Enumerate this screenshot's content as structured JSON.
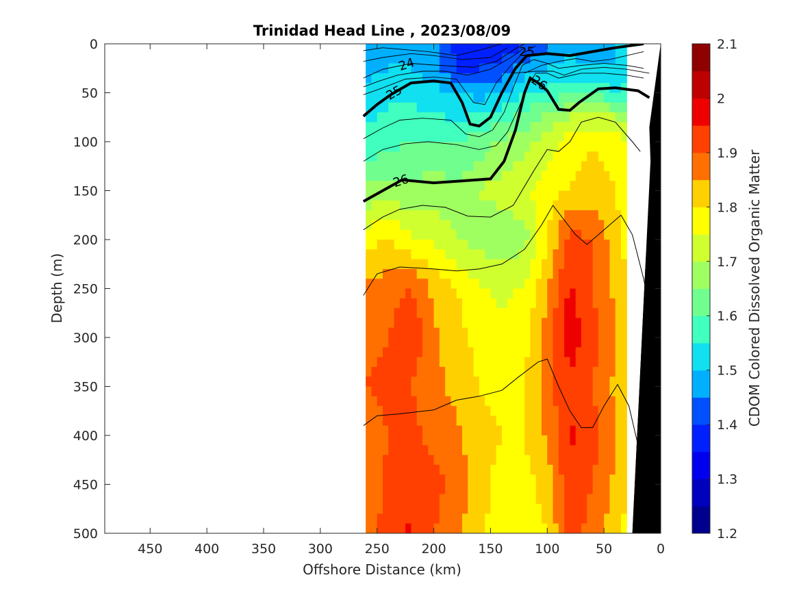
{
  "chart_data": {
    "type": "heatmap",
    "subtype": "filled-contour section with overlaid density contours",
    "title": "Trinidad Head Line , 2023/08/09",
    "xlabel": "Offshore Distance (km)",
    "ylabel": "Depth (m)",
    "colorbar_label": "CDOM Colored Dissolved Organic Matter",
    "xlim": [
      490,
      0
    ],
    "x_reversed": true,
    "ylim": [
      0,
      500
    ],
    "y_reversed": true,
    "x_ticks": [
      450,
      400,
      350,
      300,
      250,
      200,
      150,
      100,
      50,
      0
    ],
    "y_ticks": [
      0,
      50,
      100,
      150,
      200,
      250,
      300,
      350,
      400,
      450,
      500
    ],
    "clim": [
      1.2,
      2.1
    ],
    "colorbar_ticks": [
      2.1,
      2,
      1.9,
      1.8,
      1.7,
      1.6,
      1.5,
      1.4,
      1.3,
      1.2
    ],
    "colorbar_levels": 18,
    "colormap": [
      "#00008f",
      "#0000bf",
      "#0000ef",
      "#0020ff",
      "#0050ff",
      "#0080ff",
      "#00b0ff",
      "#10e0ef",
      "#40ffbf",
      "#70ff8f",
      "#a0ff60",
      "#d0ff30",
      "#ffff00",
      "#ffd000",
      "#ffa000",
      "#ff7000",
      "#ff4000",
      "#ef0000",
      "#bf0000",
      "#8f0000"
    ],
    "data_extent_x": [
      260,
      30
    ],
    "stations_x": [
      260,
      240,
      220,
      200,
      180,
      160,
      140,
      120,
      100,
      80,
      60,
      40,
      30
    ],
    "depths": [
      0,
      25,
      50,
      75,
      100,
      150,
      200,
      250,
      300,
      350,
      400,
      450,
      500
    ],
    "cdom": [
      [
        1.44,
        1.46,
        1.48,
        1.46,
        1.38,
        1.37,
        1.36,
        1.4,
        1.44,
        1.48,
        1.48,
        1.5,
        1.5
      ],
      [
        1.48,
        1.5,
        1.5,
        1.47,
        1.4,
        1.4,
        1.42,
        1.47,
        1.5,
        1.52,
        1.5,
        1.5,
        1.52
      ],
      [
        1.52,
        1.54,
        1.54,
        1.52,
        1.5,
        1.48,
        1.5,
        1.54,
        1.56,
        1.6,
        1.58,
        1.56,
        1.56
      ],
      [
        1.54,
        1.56,
        1.56,
        1.56,
        1.54,
        1.56,
        1.58,
        1.62,
        1.66,
        1.7,
        1.72,
        1.7,
        1.66
      ],
      [
        1.56,
        1.58,
        1.6,
        1.6,
        1.6,
        1.62,
        1.66,
        1.68,
        1.72,
        1.78,
        1.8,
        1.78,
        1.74
      ],
      [
        1.66,
        1.68,
        1.66,
        1.68,
        1.66,
        1.7,
        1.72,
        1.74,
        1.78,
        1.8,
        1.82,
        1.8,
        1.76
      ],
      [
        1.78,
        1.8,
        1.76,
        1.74,
        1.7,
        1.68,
        1.66,
        1.68,
        1.8,
        1.92,
        1.9,
        1.82,
        1.78
      ],
      [
        1.86,
        1.88,
        1.9,
        1.84,
        1.8,
        1.76,
        1.74,
        1.76,
        1.84,
        1.96,
        1.9,
        1.84,
        1.8
      ],
      [
        1.88,
        1.9,
        1.94,
        1.86,
        1.82,
        1.78,
        1.76,
        1.78,
        1.88,
        1.98,
        1.92,
        1.86,
        1.8
      ],
      [
        1.9,
        1.92,
        1.9,
        1.86,
        1.84,
        1.8,
        1.78,
        1.8,
        1.88,
        1.94,
        1.9,
        1.84,
        1.8
      ],
      [
        1.86,
        1.9,
        1.92,
        1.88,
        1.86,
        1.82,
        1.8,
        1.8,
        1.86,
        1.96,
        1.92,
        1.86,
        1.8
      ],
      [
        1.84,
        1.92,
        1.9,
        1.92,
        1.88,
        1.82,
        1.78,
        1.78,
        1.82,
        1.94,
        1.9,
        1.84,
        1.8
      ],
      [
        1.86,
        1.94,
        1.96,
        1.9,
        1.86,
        1.82,
        1.76,
        1.78,
        1.8,
        1.92,
        1.88,
        1.82,
        1.78
      ]
    ],
    "density_contours": [
      {
        "level": "24",
        "labeled": true,
        "bold": false,
        "points": [
          [
            262,
            35
          ],
          [
            245,
            26
          ],
          [
            220,
            20
          ],
          [
            195,
            22
          ],
          [
            165,
            24
          ],
          [
            145,
            18
          ],
          [
            128,
            5
          ],
          [
            120,
            0
          ]
        ]
      },
      {
        "level": "25",
        "labeled": true,
        "bold": true,
        "points": [
          [
            262,
            74
          ],
          [
            250,
            62
          ],
          [
            238,
            52
          ],
          [
            220,
            40
          ],
          [
            200,
            38
          ],
          [
            185,
            40
          ],
          [
            175,
            60
          ],
          [
            168,
            82
          ],
          [
            160,
            84
          ],
          [
            150,
            75
          ],
          [
            140,
            50
          ],
          [
            128,
            25
          ],
          [
            118,
            12
          ],
          [
            100,
            10
          ],
          [
            80,
            12
          ],
          [
            60,
            8
          ],
          [
            40,
            4
          ],
          [
            15,
            0
          ]
        ]
      },
      {
        "level": "26",
        "labeled": true,
        "bold": true,
        "points": [
          [
            262,
            161
          ],
          [
            245,
            150
          ],
          [
            228,
            139
          ],
          [
            200,
            142
          ],
          [
            175,
            140
          ],
          [
            150,
            138
          ],
          [
            138,
            120
          ],
          [
            128,
            88
          ],
          [
            120,
            50
          ],
          [
            115,
            35
          ],
          [
            108,
            40
          ],
          [
            100,
            48
          ],
          [
            90,
            67
          ],
          [
            80,
            68
          ],
          [
            72,
            60
          ],
          [
            55,
            46
          ],
          [
            40,
            45
          ],
          [
            20,
            48
          ],
          [
            10,
            55
          ]
        ]
      },
      {
        "level": "",
        "labeled": false,
        "bold": false,
        "points": [
          [
            262,
            190
          ],
          [
            245,
            177
          ],
          [
            230,
            169
          ],
          [
            210,
            165
          ],
          [
            190,
            167
          ],
          [
            170,
            176
          ],
          [
            150,
            177
          ],
          [
            130,
            165
          ],
          [
            112,
            130
          ],
          [
            100,
            108
          ],
          [
            90,
            110
          ],
          [
            80,
            100
          ],
          [
            70,
            80
          ],
          [
            55,
            75
          ],
          [
            40,
            80
          ],
          [
            25,
            100
          ],
          [
            18,
            110
          ]
        ]
      },
      {
        "level": "",
        "labeled": false,
        "bold": false,
        "points": [
          [
            262,
            257
          ],
          [
            250,
            235
          ],
          [
            230,
            228
          ],
          [
            200,
            230
          ],
          [
            180,
            232
          ],
          [
            160,
            230
          ],
          [
            140,
            225
          ],
          [
            120,
            210
          ],
          [
            105,
            185
          ],
          [
            95,
            165
          ],
          [
            85,
            180
          ],
          [
            75,
            195
          ],
          [
            65,
            205
          ],
          [
            55,
            195
          ],
          [
            45,
            185
          ],
          [
            35,
            175
          ],
          [
            25,
            195
          ],
          [
            15,
            240
          ],
          [
            10,
            270
          ]
        ]
      },
      {
        "level": "",
        "labeled": false,
        "bold": false,
        "points": [
          [
            262,
            390
          ],
          [
            250,
            380
          ],
          [
            230,
            378
          ],
          [
            200,
            374
          ],
          [
            180,
            364
          ],
          [
            160,
            360
          ],
          [
            140,
            354
          ],
          [
            125,
            340
          ],
          [
            108,
            325
          ],
          [
            100,
            322
          ],
          [
            90,
            350
          ],
          [
            80,
            375
          ],
          [
            70,
            392
          ],
          [
            60,
            392
          ],
          [
            50,
            370
          ],
          [
            38,
            348
          ],
          [
            28,
            370
          ],
          [
            18,
            420
          ]
        ]
      }
    ],
    "shallow_contours": [
      [
        [
          262,
          7
        ],
        [
          245,
          4
        ],
        [
          225,
          6
        ],
        [
          205,
          8
        ],
        [
          180,
          12
        ],
        [
          155,
          5
        ],
        [
          140,
          0
        ]
      ],
      [
        [
          262,
          18
        ],
        [
          245,
          14
        ],
        [
          220,
          10
        ],
        [
          200,
          12
        ],
        [
          175,
          16
        ],
        [
          150,
          14
        ],
        [
          135,
          4
        ]
      ],
      [
        [
          262,
          44
        ],
        [
          248,
          38
        ],
        [
          232,
          32
        ],
        [
          210,
          28
        ],
        [
          190,
          28
        ],
        [
          170,
          32
        ],
        [
          150,
          26
        ],
        [
          132,
          14
        ],
        [
          120,
          4
        ]
      ],
      [
        [
          262,
          52
        ],
        [
          245,
          45
        ],
        [
          225,
          36
        ],
        [
          200,
          34
        ],
        [
          180,
          36
        ],
        [
          165,
          60
        ],
        [
          155,
          62
        ],
        [
          145,
          40
        ],
        [
          132,
          22
        ],
        [
          122,
          10
        ],
        [
          110,
          2
        ]
      ],
      [
        [
          262,
          97
        ],
        [
          245,
          86
        ],
        [
          230,
          78
        ],
        [
          210,
          76
        ],
        [
          185,
          78
        ],
        [
          172,
          92
        ],
        [
          160,
          95
        ],
        [
          148,
          88
        ],
        [
          138,
          70
        ],
        [
          130,
          45
        ],
        [
          122,
          22
        ],
        [
          112,
          16
        ],
        [
          100,
          20
        ],
        [
          90,
          25
        ],
        [
          70,
          22
        ],
        [
          50,
          20
        ],
        [
          30,
          22
        ],
        [
          15,
          25
        ]
      ],
      [
        [
          262,
          120
        ],
        [
          245,
          108
        ],
        [
          225,
          102
        ],
        [
          205,
          100
        ],
        [
          180,
          103
        ],
        [
          160,
          108
        ],
        [
          145,
          104
        ],
        [
          135,
          90
        ],
        [
          125,
          65
        ],
        [
          118,
          44
        ],
        [
          110,
          30
        ],
        [
          100,
          30
        ],
        [
          90,
          35
        ],
        [
          70,
          30
        ],
        [
          50,
          30
        ],
        [
          30,
          32
        ],
        [
          15,
          35
        ]
      ],
      [
        [
          120,
          30
        ],
        [
          105,
          22
        ],
        [
          90,
          18
        ],
        [
          75,
          15
        ],
        [
          60,
          18
        ],
        [
          45,
          16
        ],
        [
          30,
          12
        ],
        [
          15,
          8
        ]
      ],
      [
        [
          130,
          30
        ],
        [
          110,
          28
        ],
        [
          95,
          28
        ],
        [
          85,
          32
        ],
        [
          70,
          26
        ],
        [
          50,
          24
        ],
        [
          30,
          26
        ],
        [
          10,
          30
        ]
      ]
    ],
    "contour_labels": [
      {
        "text": "24",
        "x": 224,
        "y": 21,
        "angle": -18
      },
      {
        "text": "25",
        "x": 235,
        "y": 50,
        "angle": -30
      },
      {
        "text": "25",
        "x": 118,
        "y": 8,
        "angle": 0
      },
      {
        "text": "26",
        "x": 107,
        "y": 40,
        "angle": 35
      },
      {
        "text": "26",
        "x": 229,
        "y": 140,
        "angle": -18
      }
    ],
    "seafloor_polygon": [
      [
        0,
        0
      ],
      [
        30,
        500
      ],
      [
        25,
        500
      ],
      [
        12,
        85
      ],
      [
        10,
        60
      ],
      [
        0,
        0
      ]
    ],
    "seafloor_fill": [
      [
        0,
        0
      ],
      [
        10,
        85
      ],
      [
        9,
        120
      ],
      [
        25,
        500
      ],
      [
        0,
        500
      ]
    ],
    "colors": {
      "axis": "#262626",
      "contour": "#000000",
      "seafloor": "#000000",
      "background": "#ffffff"
    }
  }
}
